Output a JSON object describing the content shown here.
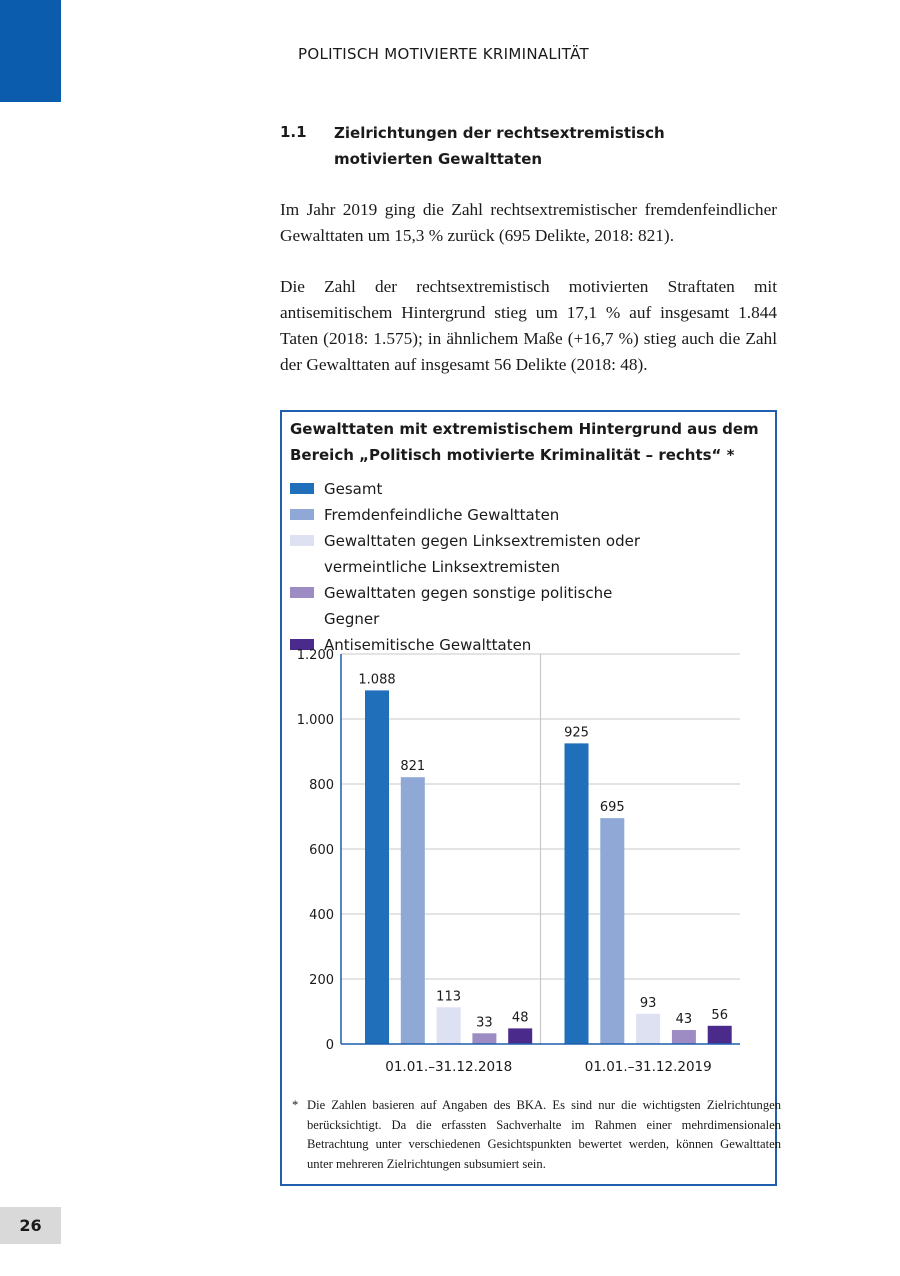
{
  "header": {
    "running_title": "POLITISCH MOTIVIERTE KRIMINALITÄT",
    "brand_color": "#0b5cad"
  },
  "section": {
    "number": "1.1",
    "title": "Zielrichtungen der rechtsextremistisch motivierten Gewalttaten"
  },
  "paragraphs": [
    "Im Jahr 2019 ging die Zahl rechtsextremistischer fremdenfeindlicher Gewalttaten um 15,3 % zurück (695 Delikte, 2018: 821).",
    "Die Zahl der rechtsextremistisch motivierten Straftaten mit antisemitischem Hintergrund stieg um 17,1 % auf insgesamt 1.844 Taten (2018: 1.575); in ähnlichem Maße (+16,7 %) stieg auch die Zahl der Gewalttaten auf insgesamt 56 Delikte (2018: 48)."
  ],
  "chart_data": {
    "type": "bar",
    "title": "Gewalttaten mit extremistischem Hintergrund aus dem Bereich „Politisch motivierte Kriminalität – rechts“ *",
    "categories": [
      "01.01.–31.12.2018",
      "01.01.–31.12.2019"
    ],
    "series": [
      {
        "name": "Gesamt",
        "color": "#1f6fba",
        "values": [
          1088,
          925
        ],
        "labels": [
          "1.088",
          "925"
        ]
      },
      {
        "name": "Fremdenfeindliche Gewalttaten",
        "color": "#8fa8d6",
        "values": [
          821,
          695
        ],
        "labels": [
          "821",
          "695"
        ]
      },
      {
        "name": "Gewalttaten gegen Linksextremisten oder vermeintliche Linksextremisten",
        "color": "#dde1f2",
        "values": [
          113,
          93
        ],
        "labels": [
          "113",
          "93"
        ]
      },
      {
        "name": "Gewalttaten gegen sonstige politische Gegner",
        "color": "#9d8cc4",
        "values": [
          33,
          43
        ],
        "labels": [
          "33",
          "43"
        ]
      },
      {
        "name": "Antisemitische Gewalttaten",
        "color": "#4a2a8a",
        "values": [
          48,
          56
        ],
        "labels": [
          "48",
          "56"
        ]
      }
    ],
    "ylim": [
      0,
      1200
    ],
    "yticks": [
      0,
      200,
      400,
      600,
      800,
      1000,
      1200
    ],
    "ytick_labels": [
      "0",
      "200",
      "400",
      "600",
      "800",
      "1.000",
      "1.200"
    ],
    "grid": true,
    "legend_position": "top",
    "footnote": "Die Zahlen basieren auf Angaben des BKA. Es sind nur die wichtigsten Zielrichtungen berücksichtigt. Da die erfassten Sachverhalte im Rahmen einer mehrdimensionalen Betrachtung unter verschiedenen Gesichtspunkten bewertet werden, können Gewalttaten unter mehreren Zielrichtungen subsumiert sein.",
    "footnote_marker": "*"
  },
  "footer": {
    "page_number": "26"
  }
}
